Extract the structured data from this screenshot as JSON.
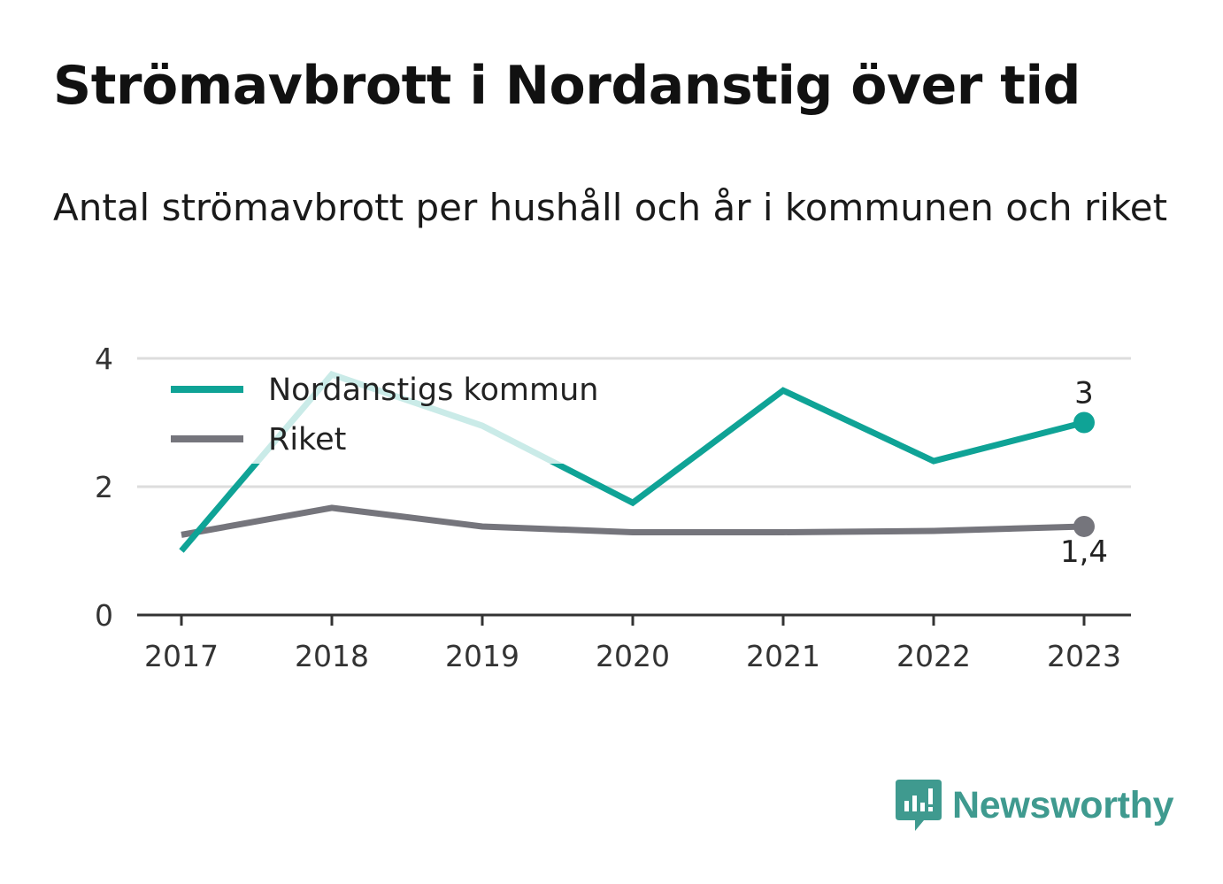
{
  "header": {
    "title": "Strömavbrott i Nordanstig över tid",
    "subtitle": "Antal strömavbrott per hushåll och år i kommunen och riket"
  },
  "brand": {
    "name": "Newsworthy",
    "color": "#3f9a8f",
    "icon": "newsworthy-bar-chart-icon"
  },
  "chart_data": {
    "type": "line",
    "title": "Strömavbrott i Nordanstig över tid",
    "subtitle": "Antal strömavbrott per hushåll och år i kommunen och riket",
    "x": [
      "2017",
      "2018",
      "2019",
      "2020",
      "2021",
      "2022",
      "2023"
    ],
    "ylim": [
      0,
      4
    ],
    "yticks": [
      "0",
      "2",
      "4"
    ],
    "grid": true,
    "legend_position": "top-left",
    "series": [
      {
        "name": "Nordanstigs kommun",
        "color": "#0fa396",
        "values": [
          1.0,
          3.75,
          2.95,
          1.75,
          3.5,
          2.4,
          3.0
        ],
        "end_label": "3"
      },
      {
        "name": "Riket",
        "color": "#75757c",
        "values": [
          1.25,
          1.67,
          1.38,
          1.29,
          1.29,
          1.31,
          1.38
        ],
        "end_label": "1,4"
      }
    ]
  }
}
